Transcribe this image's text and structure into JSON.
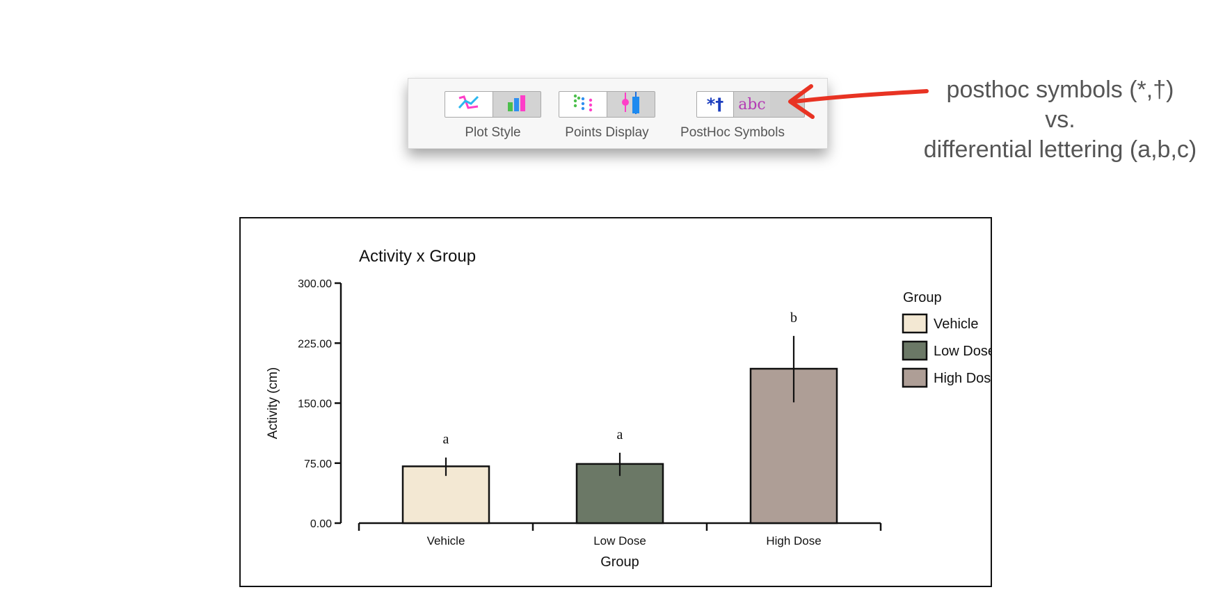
{
  "toolbar": {
    "groups": [
      {
        "label": "Plot Style",
        "buttons": [
          {
            "icon": "line-plot-icon",
            "active": true
          },
          {
            "icon": "bar-plot-icon",
            "active": false
          }
        ]
      },
      {
        "label": "Points Display",
        "buttons": [
          {
            "icon": "dot-points-icon",
            "active": true
          },
          {
            "icon": "box-plot-icon",
            "active": false
          }
        ]
      },
      {
        "label": "PostHoc Symbols",
        "buttons": [
          {
            "icon": "symbols-icon",
            "glyph": "*†",
            "active": true
          },
          {
            "icon": "letters-icon",
            "glyph": "abc",
            "active": false
          }
        ]
      }
    ]
  },
  "annotation": {
    "line1": "posthoc symbols (*,†)",
    "line2": "vs.",
    "line3": "differential lettering (a,b,c)",
    "color": "#e83323"
  },
  "chart_data": {
    "type": "bar",
    "title": "Activity x Group",
    "xlabel": "Group",
    "ylabel": "Activity (cm)",
    "categories": [
      "Vehicle",
      "Low Dose",
      "High Dose"
    ],
    "values": [
      71,
      74,
      193
    ],
    "error_low": [
      59,
      59,
      151
    ],
    "error_high": [
      82,
      88,
      234
    ],
    "posthoc_letters": [
      "a",
      "a",
      "b"
    ],
    "colors": [
      "#f3e8d3",
      "#6b7866",
      "#ae9e96"
    ],
    "ylim": [
      0,
      300
    ],
    "yticks": [
      "0.00",
      "75.00",
      "150.00",
      "225.00",
      "300.00"
    ],
    "ytick_values": [
      0,
      75,
      150,
      225,
      300
    ],
    "legend": {
      "title": "Group",
      "entries": [
        "Vehicle",
        "Low Dose",
        "High Dose"
      ],
      "placement": "right"
    },
    "grid": false
  }
}
